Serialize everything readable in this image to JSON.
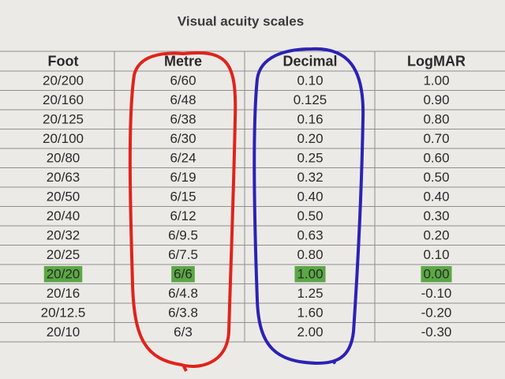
{
  "title": "Visual acuity scales",
  "table": {
    "header": [
      "Foot",
      "Metre",
      "Decimal",
      "LogMAR"
    ],
    "rows": [
      [
        "20/200",
        "6/60",
        "0.10",
        "1.00"
      ],
      [
        "20/160",
        "6/48",
        "0.125",
        "0.90"
      ],
      [
        "20/125",
        "6/38",
        "0.16",
        "0.80"
      ],
      [
        "20/100",
        "6/30",
        "0.20",
        "0.70"
      ],
      [
        "20/80",
        "6/24",
        "0.25",
        "0.60"
      ],
      [
        "20/63",
        "6/19",
        "0.32",
        "0.50"
      ],
      [
        "20/50",
        "6/15",
        "0.40",
        "0.40"
      ],
      [
        "20/40",
        "6/12",
        "0.50",
        "0.30"
      ],
      [
        "20/32",
        "6/9.5",
        "0.63",
        "0.20"
      ],
      [
        "20/25",
        "6/7.5",
        "0.80",
        "0.10"
      ],
      [
        "20/20",
        "6/6",
        "1.00",
        "0.00"
      ],
      [
        "20/16",
        "6/4.8",
        "1.25",
        "-0.10"
      ],
      [
        "20/12.5",
        "6/3.8",
        "1.60",
        "-0.20"
      ],
      [
        "20/10",
        "6/3",
        "2.00",
        "-0.30"
      ]
    ],
    "highlight_row": 10,
    "highlight_color": "#5aa845"
  }
}
